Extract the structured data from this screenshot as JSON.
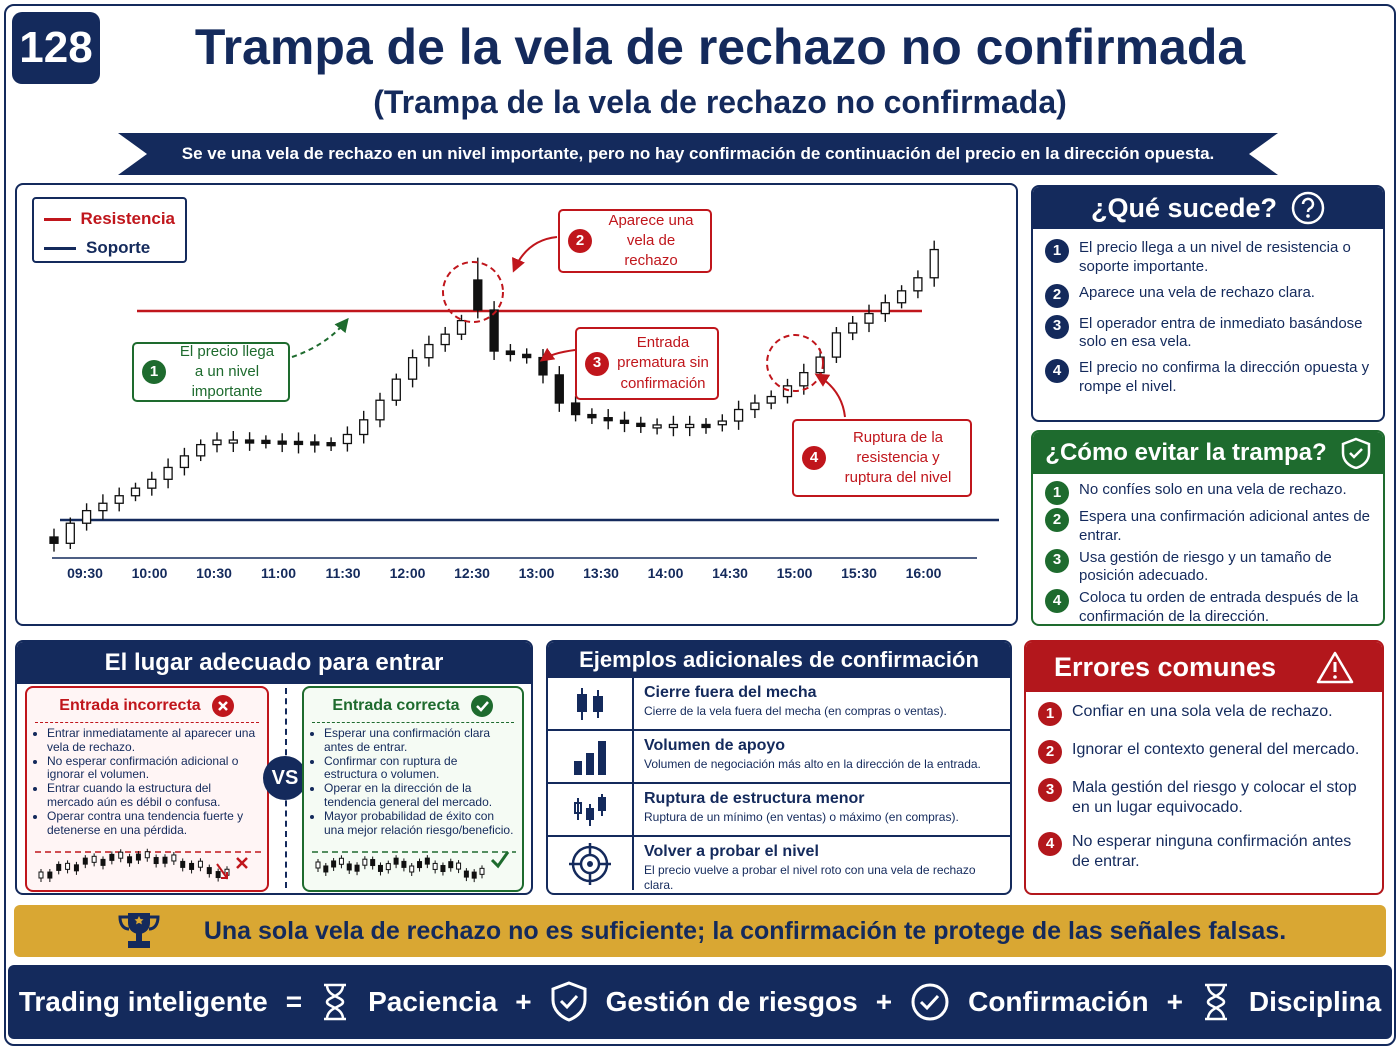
{
  "badge": "128",
  "header": {
    "title": "Trampa de la vela de rechazo no confirmada",
    "subtitle": "(Trampa de la vela de rechazo no confirmada)",
    "banner": "Se ve una vela de rechazo en un nivel importante, pero no hay confirmación de continuación del precio en la dirección opuesta."
  },
  "chart": {
    "legend": [
      "Resistencia",
      "Soporte"
    ],
    "annotations": [
      {
        "n": "1",
        "text": "El precio llega a un nivel importante"
      },
      {
        "n": "2",
        "text": "Aparece una vela de rechazo"
      },
      {
        "n": "3",
        "text": "Entrada prematura sin confirmación"
      },
      {
        "n": "4",
        "text": "Ruptura de la resistencia y ruptura del nivel"
      }
    ],
    "times": [
      "09:30",
      "10:00",
      "10:30",
      "11:00",
      "11:30",
      "12:00",
      "12:30",
      "13:00",
      "13:30",
      "14:00",
      "14:30",
      "15:00",
      "15:30",
      "16:00"
    ]
  },
  "what_happens": {
    "title": "¿Qué sucede?",
    "items": [
      {
        "n": "1",
        "text": "El precio llega a un nivel de resistencia o soporte importante."
      },
      {
        "n": "2",
        "text": "Aparece una vela de rechazo clara."
      },
      {
        "n": "3",
        "text": "El operador entra de inmediato basándose solo en esa vela."
      },
      {
        "n": "4",
        "text": "El precio no confirma la dirección opuesta y rompe el nivel."
      }
    ]
  },
  "avoid": {
    "title": "¿Cómo evitar la trampa?",
    "items": [
      {
        "n": "1",
        "text": "No confíes solo en una vela de rechazo."
      },
      {
        "n": "2",
        "text": "Espera una confirmación adicional antes de entrar."
      },
      {
        "n": "3",
        "text": "Usa gestión de riesgo y un tamaño de posición adecuado."
      },
      {
        "n": "4",
        "text": "Coloca tu orden de entrada después de la confirmación de la dirección."
      }
    ]
  },
  "entry": {
    "title": "El lugar adecuado para entrar",
    "incorrect": {
      "title": "Entrada incorrecta",
      "items": [
        {
          "text": "Entrar inmediatamente al aparecer una vela de rechazo."
        },
        {
          "text": "No esperar confirmación adicional o ignorar el volumen."
        },
        {
          "text": "Entrar cuando la estructura del mercado aún es débil o confusa."
        },
        {
          "text": "Operar contra una tendencia fuerte y detenerse en una pérdida."
        }
      ]
    },
    "vs": "VS",
    "correct": {
      "title": "Entrada correcta",
      "items": [
        {
          "text": "Esperar una confirmación clara antes de entrar."
        },
        {
          "text": "Confirmar con ruptura de estructura o volumen."
        },
        {
          "text": "Operar en la dirección de la tendencia general del mercado."
        },
        {
          "text": "Mayor probabilidad de éxito con una mejor relación riesgo/beneficio."
        }
      ]
    }
  },
  "examples": {
    "title": "Ejemplos adicionales de confirmación",
    "items": [
      {
        "title": "Cierre fuera del mecha",
        "text": "Cierre de la vela fuera del mecha (en compras o ventas)."
      },
      {
        "title": "Volumen de apoyo",
        "text": "Volumen de negociación más alto en la dirección de la entrada."
      },
      {
        "title": "Ruptura de estructura menor",
        "text": "Ruptura de un mínimo (en ventas) o máximo (en compras)."
      },
      {
        "title": "Volver a probar el nivel",
        "text": "El precio vuelve a probar el nivel roto con una vela de rechazo clara."
      }
    ]
  },
  "errors": {
    "title": "Errores comunes",
    "items": [
      {
        "n": "1",
        "text": "Confiar en una sola vela de rechazo."
      },
      {
        "n": "2",
        "text": "Ignorar el contexto general del mercado."
      },
      {
        "n": "3",
        "text": "Mala gestión del riesgo y colocar el stop en un lugar equivocado."
      },
      {
        "n": "4",
        "text": "No esperar ninguna confirmación antes de entrar."
      }
    ]
  },
  "tip": "Una sola vela de rechazo no es suficiente; la confirmación te protege de las señales falsas.",
  "footer": {
    "lead": "Trading inteligente",
    "equals": "=",
    "plus": "+",
    "items": [
      "Paciencia",
      "Gestión de riesgos",
      "Confirmación",
      "Disciplina"
    ]
  }
}
